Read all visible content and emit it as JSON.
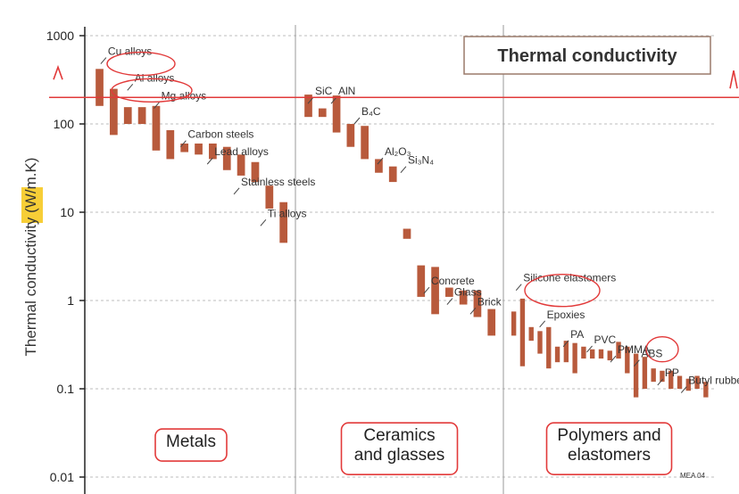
{
  "chart_data": {
    "type": "bar",
    "title": "Thermal conductivity",
    "ylabel": "Thermal conductivity (W/m.K)",
    "yscale": "log",
    "ylim": [
      0.01,
      1000
    ],
    "yticks": [
      "1000",
      "100",
      "10",
      "1",
      "0.1",
      "0.01"
    ],
    "grid": true,
    "code": "MEA 04",
    "colors": {
      "bar": "#b85a3c",
      "grid": "#bdbdbd",
      "annotation": "#e23a3a",
      "highlight": "#f6c514"
    },
    "categories": [
      {
        "label": "Metals",
        "lines": [
          "Metals"
        ]
      },
      {
        "label": "Ceramics and glasses",
        "lines": [
          "Ceramics",
          "and glasses"
        ]
      },
      {
        "label": "Polymers and elastomers",
        "lines": [
          "Polymers and",
          "elastomers"
        ]
      }
    ],
    "ranges": [
      {
        "group": 0,
        "low": 160,
        "high": 420
      },
      {
        "group": 0,
        "low": 75,
        "high": 250
      },
      {
        "group": 0,
        "low": 100,
        "high": 155
      },
      {
        "group": 0,
        "low": 100,
        "high": 155
      },
      {
        "group": 0,
        "low": 50,
        "high": 160
      },
      {
        "group": 0,
        "low": 40,
        "high": 85
      },
      {
        "group": 0,
        "low": 48,
        "high": 60
      },
      {
        "group": 0,
        "low": 45,
        "high": 60
      },
      {
        "group": 0,
        "low": 40,
        "high": 60
      },
      {
        "group": 0,
        "low": 30,
        "high": 55
      },
      {
        "group": 0,
        "low": 26,
        "high": 45
      },
      {
        "group": 0,
        "low": 22,
        "high": 37
      },
      {
        "group": 0,
        "low": 11,
        "high": 20
      },
      {
        "group": 0,
        "low": 4.5,
        "high": 13
      },
      {
        "group": 1,
        "low": 120,
        "high": 215
      },
      {
        "group": 1,
        "low": 120,
        "high": 150
      },
      {
        "group": 1,
        "low": 80,
        "high": 210
      },
      {
        "group": 1,
        "low": 55,
        "high": 100
      },
      {
        "group": 1,
        "low": 40,
        "high": 95
      },
      {
        "group": 1,
        "low": 28,
        "high": 40
      },
      {
        "group": 1,
        "low": 22,
        "high": 33
      },
      {
        "group": 1,
        "low": 5,
        "high": 6.5
      },
      {
        "group": 1,
        "low": 1.1,
        "high": 2.5
      },
      {
        "group": 1,
        "low": 0.7,
        "high": 2.4
      },
      {
        "group": 1,
        "low": 1.1,
        "high": 1.4
      },
      {
        "group": 1,
        "low": 0.9,
        "high": 1.3
      },
      {
        "group": 1,
        "low": 0.65,
        "high": 1.3
      },
      {
        "group": 1,
        "low": 0.4,
        "high": 0.8
      },
      {
        "group": 2,
        "low": 0.4,
        "high": 0.75
      },
      {
        "group": 2,
        "low": 0.18,
        "high": 1.05
      },
      {
        "group": 2,
        "low": 0.35,
        "high": 0.5
      },
      {
        "group": 2,
        "low": 0.25,
        "high": 0.45
      },
      {
        "group": 2,
        "low": 0.17,
        "high": 0.5
      },
      {
        "group": 2,
        "low": 0.2,
        "high": 0.3
      },
      {
        "group": 2,
        "low": 0.2,
        "high": 0.35
      },
      {
        "group": 2,
        "low": 0.15,
        "high": 0.33
      },
      {
        "group": 2,
        "low": 0.22,
        "high": 0.3
      },
      {
        "group": 2,
        "low": 0.22,
        "high": 0.28
      },
      {
        "group": 2,
        "low": 0.22,
        "high": 0.28
      },
      {
        "group": 2,
        "low": 0.21,
        "high": 0.27
      },
      {
        "group": 2,
        "low": 0.22,
        "high": 0.34
      },
      {
        "group": 2,
        "low": 0.15,
        "high": 0.3
      },
      {
        "group": 2,
        "low": 0.08,
        "high": 0.25
      },
      {
        "group": 2,
        "low": 0.1,
        "high": 0.23
      },
      {
        "group": 2,
        "low": 0.12,
        "high": 0.17
      },
      {
        "group": 2,
        "low": 0.12,
        "high": 0.16
      },
      {
        "group": 2,
        "low": 0.1,
        "high": 0.16
      },
      {
        "group": 2,
        "low": 0.1,
        "high": 0.14
      },
      {
        "group": 2,
        "low": 0.095,
        "high": 0.13
      },
      {
        "group": 2,
        "low": 0.1,
        "high": 0.14
      },
      {
        "group": 2,
        "low": 0.08,
        "high": 0.12
      }
    ],
    "annotations": [
      {
        "text": "Cu alloys",
        "value": 480,
        "group": 0
      },
      {
        "text": "Al alloys",
        "value": 240,
        "group": 0
      },
      {
        "text": "Mg alloys",
        "value": 150,
        "group": 0
      },
      {
        "text": "Carbon steels",
        "value": 55,
        "group": 0
      },
      {
        "text": "Lead alloys",
        "value": 35,
        "group": 0
      },
      {
        "text": "Stainless steels",
        "value": 16,
        "group": 0
      },
      {
        "text": "Ti alloys",
        "value": 7,
        "group": 0
      },
      {
        "text": "SiC",
        "value": 170,
        "group": 1
      },
      {
        "text": "AlN",
        "value": 170,
        "group": 1
      },
      {
        "text": "B₄C",
        "value": 100,
        "group": 1
      },
      {
        "text": "Al₂O₃",
        "value": 35,
        "group": 1
      },
      {
        "text": "Si₃N₄",
        "value": 28,
        "group": 1
      },
      {
        "text": "Concrete",
        "value": 1.2,
        "group": 1
      },
      {
        "text": "Glass",
        "value": 0.9,
        "group": 1
      },
      {
        "text": "Brick",
        "value": 0.7,
        "group": 1
      },
      {
        "text": "Silicone elastomers",
        "value": 1.3,
        "group": 2
      },
      {
        "text": "Epoxies",
        "value": 0.5,
        "group": 2
      },
      {
        "text": "PA",
        "value": 0.3,
        "group": 2
      },
      {
        "text": "PVC",
        "value": 0.26,
        "group": 2
      },
      {
        "text": "PMMA",
        "value": 0.2,
        "group": 2
      },
      {
        "text": "ABS",
        "value": 0.18,
        "group": 2
      },
      {
        "text": "PP",
        "value": 0.11,
        "group": 2
      },
      {
        "text": "Butyl rubber",
        "value": 0.09,
        "group": 2
      }
    ]
  }
}
